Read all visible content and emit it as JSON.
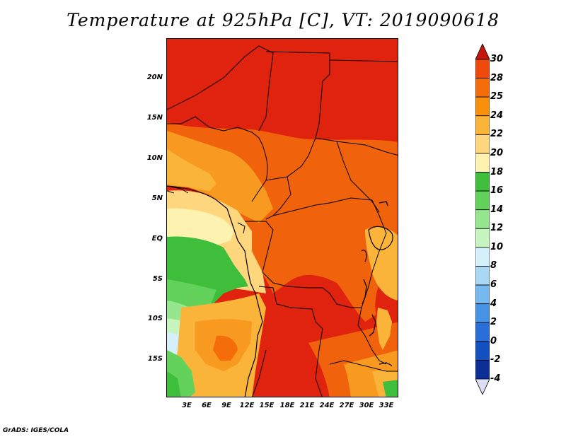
{
  "title": "Temperature at 925hPa [C], VT: 2019090618",
  "credit": "GrADS: IGES/COLA",
  "lat_labels": [
    "20N",
    "15N",
    "10N",
    "5N",
    "EQ",
    "5S",
    "10S",
    "15S"
  ],
  "lon_labels": [
    "3E",
    "6E",
    "9E",
    "12E",
    "15E",
    "18E",
    "21E",
    "24E",
    "27E",
    "30E",
    "33E"
  ],
  "colorbar": {
    "labels": [
      "30",
      "28",
      "25",
      "24",
      "22",
      "20",
      "18",
      "16",
      "14",
      "12",
      "10",
      "8",
      "6",
      "4",
      "2",
      "0",
      "-2",
      "-4"
    ],
    "colors": [
      "#e0230e",
      "#ef4a0c",
      "#f56c0a",
      "#f8900b",
      "#fbb43a",
      "#fdd67d",
      "#fdf2b0",
      "#3ebe3a",
      "#62d25a",
      "#96e68f",
      "#c6f5c0",
      "#d5f0fb",
      "#a9d8f5",
      "#74b8ef",
      "#4892e6",
      "#2a6fd9",
      "#1350c2",
      "#0b2f96",
      "#08106a"
    ],
    "over_color": "#c8150a",
    "under_color": "#dcdcf5"
  }
}
